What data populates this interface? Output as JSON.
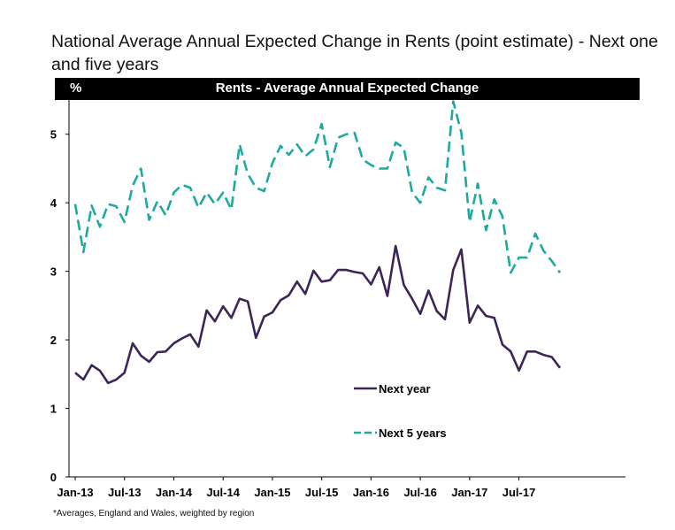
{
  "chart_data": {
    "type": "line",
    "title": "National Average Annual Expected Change in Rents (point estimate) - Next one and five years",
    "header_unit": "%",
    "header_label": "Rents  -  Average Annual Expected Change",
    "footnote": "*Averages,  England and Wales, weighted by region",
    "ylim": [
      0,
      5.5
    ],
    "yticks": [
      0,
      1,
      2,
      3,
      4,
      5
    ],
    "xticks": [
      {
        "label": "Jan-13",
        "index": 0
      },
      {
        "label": "Jul-13",
        "index": 6
      },
      {
        "label": "Jan-14",
        "index": 12
      },
      {
        "label": "Jul-14",
        "index": 18
      },
      {
        "label": "Jan-15",
        "index": 24
      },
      {
        "label": "Jul-15",
        "index": 30
      },
      {
        "label": "Jan-16",
        "index": 36
      },
      {
        "label": "Jul-16",
        "index": 42
      },
      {
        "label": "Jan-17",
        "index": 48
      },
      {
        "label": "Jul-17",
        "index": 54
      }
    ],
    "n_months": 60,
    "legend_position": "lower-center",
    "series": [
      {
        "name": "Next year",
        "color": "#3d2557",
        "style": "solid",
        "values": [
          1.52,
          1.42,
          1.63,
          1.55,
          1.37,
          1.42,
          1.52,
          1.95,
          1.77,
          1.68,
          1.82,
          1.83,
          1.95,
          2.02,
          2.08,
          1.9,
          2.43,
          2.27,
          2.49,
          2.32,
          2.6,
          2.56,
          2.03,
          2.34,
          2.4,
          2.58,
          2.65,
          2.85,
          2.67,
          3.01,
          2.85,
          2.87,
          3.02,
          3.02,
          2.99,
          2.97,
          2.81,
          3.06,
          2.64,
          3.37,
          2.8,
          2.6,
          2.38,
          2.72,
          2.42,
          2.3,
          3.02,
          3.32,
          2.25,
          2.5,
          2.35,
          2.32,
          1.93,
          1.83,
          1.55,
          1.83,
          1.83,
          1.78,
          1.75,
          1.59
        ]
      },
      {
        "name": "Next 5 years",
        "color": "#1fa9a0",
        "style": "dashed",
        "values": [
          3.98,
          3.28,
          3.96,
          3.65,
          3.98,
          3.95,
          3.72,
          4.25,
          4.5,
          3.75,
          4.02,
          3.82,
          4.15,
          4.26,
          4.22,
          3.93,
          4.15,
          3.98,
          4.15,
          3.9,
          4.85,
          4.42,
          4.22,
          4.17,
          4.58,
          4.83,
          4.7,
          4.85,
          4.68,
          4.78,
          5.15,
          4.52,
          4.95,
          5.0,
          5.02,
          4.63,
          4.55,
          4.5,
          4.5,
          4.88,
          4.8,
          4.15,
          4.0,
          4.37,
          4.22,
          4.18,
          5.48,
          5.02,
          3.72,
          4.28,
          3.6,
          4.05,
          3.8,
          2.98,
          3.2,
          3.2,
          3.55,
          3.3,
          3.15,
          2.98
        ]
      }
    ]
  }
}
